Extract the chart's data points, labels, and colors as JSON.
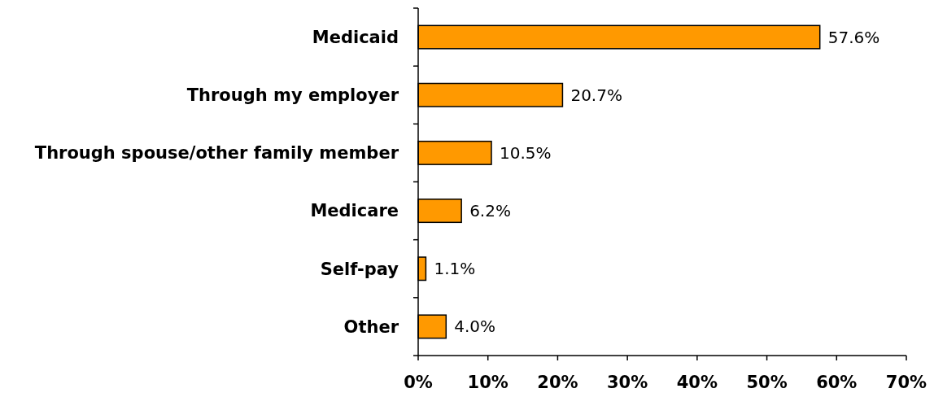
{
  "chart_data": {
    "type": "bar",
    "orientation": "horizontal",
    "categories": [
      "Medicaid",
      "Through my employer",
      "Through spouse/other family member",
      "Medicare",
      "Self-pay",
      "Other"
    ],
    "values": [
      57.6,
      20.7,
      10.5,
      6.2,
      1.1,
      4.0
    ],
    "value_labels": [
      "57.6%",
      "20.7%",
      "10.5%",
      "6.2%",
      "1.1%",
      "4.0%"
    ],
    "color": "#ff9900",
    "xlim": [
      0,
      70
    ],
    "xticks": [
      {
        "value": 0,
        "label": "0%"
      },
      {
        "value": 10,
        "label": "10%"
      },
      {
        "value": 20,
        "label": "20%"
      },
      {
        "value": 30,
        "label": "30%"
      },
      {
        "value": 40,
        "label": "40%"
      },
      {
        "value": 50,
        "label": "50%"
      },
      {
        "value": 60,
        "label": "60%"
      },
      {
        "value": 70,
        "label": "70%"
      }
    ],
    "grid": false
  }
}
